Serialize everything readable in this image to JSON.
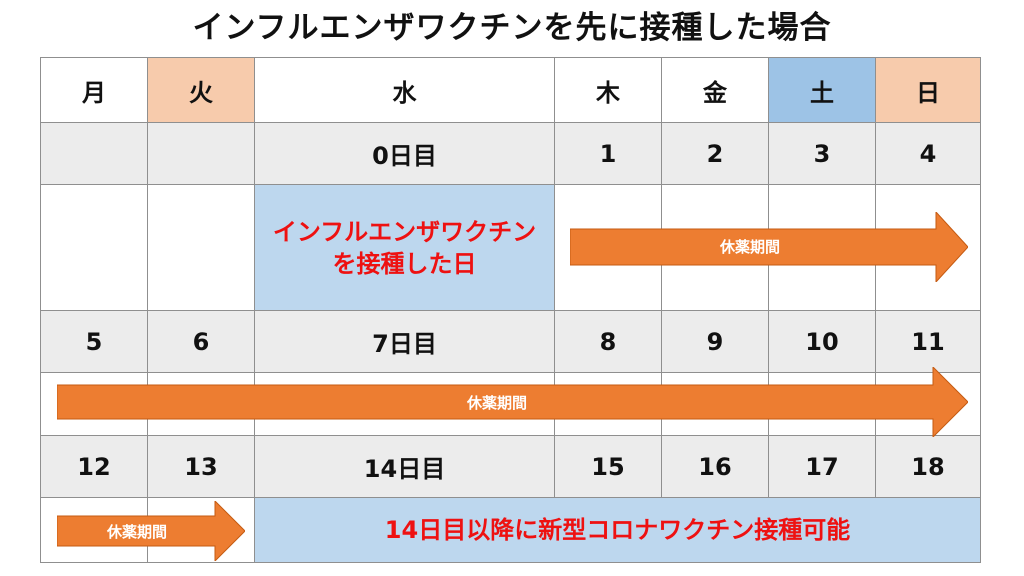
{
  "title": "インフルエンザワクチンを先に接種した場合",
  "weekdays": [
    "月",
    "火",
    "水",
    "木",
    "金",
    "土",
    "日"
  ],
  "week1": [
    "",
    "",
    "0日目",
    "1",
    "2",
    "3",
    "4"
  ],
  "week2": [
    "5",
    "6",
    "7日目",
    "8",
    "9",
    "10",
    "11"
  ],
  "week3": [
    "12",
    "13",
    "14日目",
    "15",
    "16",
    "17",
    "18"
  ],
  "vaccination_note": [
    "インフルエンザワクチン",
    "を接種した日"
  ],
  "rest_label": "休薬期間",
  "covid_note": "14日目以降に新型コロナワクチン接種可能",
  "colors": {
    "arrow": "#ed7d31",
    "header_tue_sun": "#f7cbac",
    "header_sat": "#9dc3e6",
    "highlight": "#bdd7ee",
    "note_text": "#ee1111",
    "date_row": "#ececec"
  }
}
